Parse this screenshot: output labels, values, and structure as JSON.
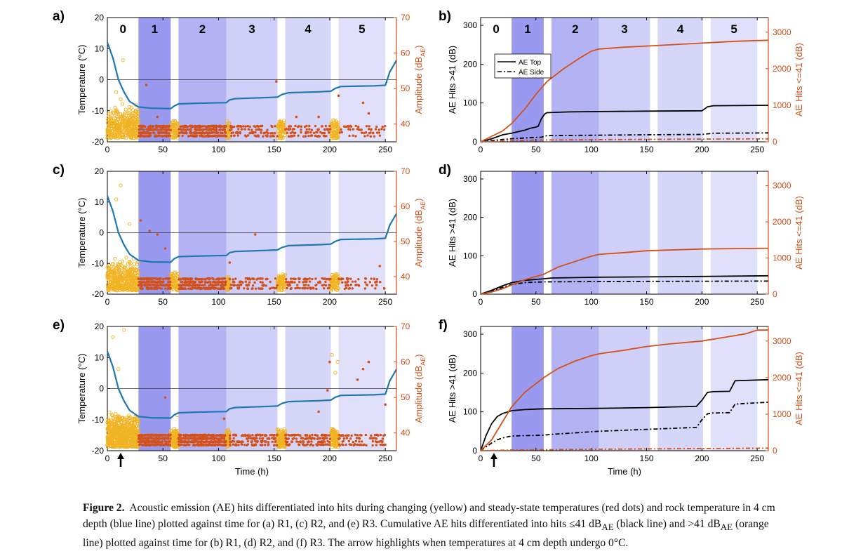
{
  "figure": {
    "caption_label": "Figure 2.",
    "caption_lines": [
      "Acoustic emission (AE) hits differentiated into hits during changing (yellow) and steady-state temperatures (red dots) and rock temperature in 4 cm depth",
      "(blue line) plotted against time for (a) R1, (c) R2, and (e) R3. Cumulative AE hits differentiated into hits ≤41 dB",
      "AE",
      " (black line) and >41 dB",
      "AE",
      " (orange line) plotted",
      "against time for (b) R1, (d) R2, and (f) R3. The arrow highlights when temperatures at 4 cm depth undergo 0°C."
    ]
  },
  "chart_data": [
    {
      "panel": "a)",
      "type": "scatter",
      "xlabel": "",
      "ylabel": "Temperature (°C)",
      "y2label": "Amplitude (dB_AE)",
      "xlim": [
        0,
        260
      ],
      "ylim": [
        -20,
        20
      ],
      "y2lim": [
        35,
        70
      ],
      "x_ticks": [
        0,
        50,
        100,
        150,
        200,
        250
      ],
      "y_ticks": [
        -20,
        -10,
        0,
        10,
        20
      ],
      "y2_ticks": [
        40,
        50,
        60,
        70
      ],
      "phases": [
        {
          "label": "0",
          "x0": 0,
          "x1": 28,
          "shade": "none"
        },
        {
          "label": "1",
          "x0": 28,
          "x1": 57,
          "shade": "#9999f0"
        },
        {
          "label": "2",
          "x0": 64,
          "x1": 107,
          "shade": "#b3b3f3"
        },
        {
          "label": "3",
          "x0": 107,
          "x1": 153,
          "shade": "#cfcff7"
        },
        {
          "label": "4",
          "x0": 160,
          "x1": 201,
          "shade": "#d6d6f8"
        },
        {
          "label": "5",
          "x0": 208,
          "x1": 250,
          "shade": "#e0e0fa"
        }
      ],
      "temperature": {
        "x": [
          0,
          5,
          10,
          15,
          20,
          28,
          40,
          57,
          60,
          64,
          80,
          107,
          110,
          115,
          140,
          153,
          157,
          163,
          190,
          201,
          205,
          210,
          240,
          250,
          254,
          260
        ],
        "y": [
          12,
          7,
          0,
          -4,
          -7,
          -8.8,
          -9.2,
          -9.3,
          -8.5,
          -7.8,
          -7.6,
          -7.4,
          -6.5,
          -6.1,
          -5.8,
          -5.6,
          -4.8,
          -4.2,
          -3.9,
          -3.7,
          -2.8,
          -2.2,
          -2.0,
          -1.8,
          2.5,
          6.2
        ]
      },
      "temperature_color": "#1f77b4",
      "changing_color": "#f0b323",
      "steady_color": "#d4501a",
      "outliers": [
        [
          8,
          49
        ],
        [
          14,
          58
        ],
        [
          35,
          51
        ],
        [
          45,
          42
        ],
        [
          12,
          47
        ],
        [
          152,
          52
        ],
        [
          208,
          48
        ],
        [
          170,
          42
        ],
        [
          190,
          42
        ],
        [
          230,
          46
        ],
        [
          235,
          43
        ]
      ]
    },
    {
      "panel": "b)",
      "type": "line",
      "ylabel": "AE Hits >41 (dB)",
      "y2label": "AE Hits <=41 (dB)",
      "xlim": [
        0,
        260
      ],
      "ylim": [
        0,
        320
      ],
      "y2lim": [
        0,
        3400
      ],
      "x_ticks": [
        0,
        50,
        100,
        150,
        200,
        250
      ],
      "y_ticks": [
        0,
        100,
        200,
        300
      ],
      "y2_ticks": [
        0,
        1000,
        2000,
        3000
      ],
      "legend": [
        {
          "name": "AE Top",
          "dash": "solid"
        },
        {
          "name": "AE Side",
          "dash": "dashdot"
        }
      ],
      "series": [
        {
          "role": "top_gt41",
          "axis": "left",
          "color": "#000000",
          "dash": "solid",
          "x": [
            0,
            10,
            20,
            28,
            35,
            40,
            45,
            50,
            52,
            55,
            58,
            60,
            80,
            107,
            150,
            200,
            205,
            210,
            260
          ],
          "y": [
            0,
            8,
            18,
            22,
            27,
            30,
            35,
            38,
            40,
            60,
            72,
            75,
            77,
            78,
            79,
            80,
            90,
            93,
            94
          ]
        },
        {
          "role": "side_gt41",
          "axis": "left",
          "color": "#000000",
          "dash": "dashdot",
          "x": [
            0,
            10,
            20,
            28,
            40,
            55,
            60,
            107,
            150,
            200,
            210,
            260
          ],
          "y": [
            0,
            3,
            6,
            8,
            10,
            12,
            16,
            17,
            18,
            19,
            22,
            23
          ]
        },
        {
          "role": "top_le41",
          "axis": "right",
          "color": "#d4501a",
          "dash": "solid",
          "x": [
            0,
            10,
            20,
            28,
            40,
            50,
            60,
            75,
            90,
            100,
            107,
            130,
            150,
            200,
            230,
            260
          ],
          "y": [
            0,
            150,
            300,
            500,
            900,
            1300,
            1650,
            2000,
            2300,
            2480,
            2540,
            2590,
            2620,
            2700,
            2750,
            2780
          ]
        },
        {
          "role": "side_le41",
          "axis": "right",
          "color": "#d4501a",
          "dash": "dashdot",
          "x": [
            0,
            28,
            60,
            107,
            200,
            260
          ],
          "y": [
            0,
            30,
            50,
            60,
            75,
            80
          ]
        }
      ]
    },
    {
      "panel": "c)",
      "type": "scatter",
      "ylabel": "Temperature (°C)",
      "y2label": "Amplitude (dB_AE)",
      "xlim": [
        0,
        260
      ],
      "ylim": [
        -20,
        20
      ],
      "y2lim": [
        35,
        70
      ],
      "x_ticks": [
        0,
        50,
        100,
        150,
        200,
        250
      ],
      "y_ticks": [
        -20,
        -10,
        0,
        10,
        20
      ],
      "y2_ticks": [
        40,
        50,
        60,
        70
      ],
      "temperature": {
        "x": [
          0,
          5,
          10,
          15,
          20,
          28,
          40,
          57,
          60,
          64,
          80,
          107,
          110,
          115,
          140,
          153,
          157,
          163,
          190,
          201,
          205,
          210,
          240,
          250,
          254,
          260
        ],
        "y": [
          12,
          7,
          0,
          -4,
          -7,
          -9.0,
          -9.5,
          -9.6,
          -8.5,
          -7.8,
          -7.6,
          -7.4,
          -6.5,
          -6.1,
          -5.8,
          -5.6,
          -4.8,
          -4.2,
          -3.9,
          -3.7,
          -2.8,
          -2.2,
          -2.0,
          -1.8,
          2.5,
          6.2
        ]
      },
      "outliers": [
        [
          8,
          62
        ],
        [
          12,
          66
        ],
        [
          20,
          55
        ],
        [
          30,
          56
        ],
        [
          38,
          53
        ],
        [
          45,
          52
        ],
        [
          52,
          48
        ],
        [
          133,
          52
        ],
        [
          110,
          44
        ],
        [
          245,
          43
        ]
      ]
    },
    {
      "panel": "d)",
      "type": "line",
      "ylabel": "AE Hits >41 (dB)",
      "y2label": "AE Hits <=41 (dB)",
      "xlim": [
        0,
        260
      ],
      "ylim": [
        0,
        320
      ],
      "y2lim": [
        0,
        3400
      ],
      "x_ticks": [
        0,
        50,
        100,
        150,
        200,
        250
      ],
      "y_ticks": [
        0,
        100,
        200,
        300
      ],
      "y2_ticks": [
        0,
        1000,
        2000,
        3000
      ],
      "series": [
        {
          "role": "top_gt41",
          "axis": "left",
          "color": "#000000",
          "dash": "solid",
          "x": [
            0,
            10,
            20,
            28,
            40,
            57,
            64,
            107,
            150,
            200,
            260
          ],
          "y": [
            0,
            10,
            22,
            30,
            36,
            40,
            42,
            44,
            45,
            46,
            48
          ]
        },
        {
          "role": "side_gt41",
          "axis": "left",
          "color": "#000000",
          "dash": "dashdot",
          "x": [
            0,
            10,
            20,
            28,
            40,
            57,
            107,
            260
          ],
          "y": [
            0,
            8,
            18,
            25,
            30,
            32,
            33,
            34
          ]
        },
        {
          "role": "top_le41",
          "axis": "right",
          "color": "#d4501a",
          "dash": "solid",
          "x": [
            0,
            10,
            20,
            28,
            40,
            57,
            70,
            85,
            100,
            107,
            130,
            150,
            200,
            260
          ],
          "y": [
            0,
            60,
            150,
            250,
            400,
            550,
            750,
            900,
            1050,
            1100,
            1150,
            1200,
            1250,
            1270
          ]
        }
      ]
    },
    {
      "panel": "e)",
      "type": "scatter",
      "xlabel": "Time (h)",
      "ylabel": "Temperature (°C)",
      "y2label": "Amplitude (dB_AE)",
      "xlim": [
        0,
        260
      ],
      "ylim": [
        -20,
        20
      ],
      "y2lim": [
        35,
        70
      ],
      "x_ticks": [
        0,
        50,
        100,
        150,
        200,
        250
      ],
      "y_ticks": [
        -20,
        -10,
        0,
        10,
        20
      ],
      "y2_ticks": [
        40,
        50,
        60,
        70
      ],
      "arrow_at": 12,
      "temperature": {
        "x": [
          0,
          5,
          10,
          15,
          20,
          28,
          40,
          57,
          60,
          64,
          80,
          107,
          110,
          115,
          140,
          153,
          157,
          163,
          190,
          201,
          205,
          210,
          240,
          250,
          254,
          260
        ],
        "y": [
          12,
          7,
          0,
          -4,
          -7,
          -9.0,
          -9.4,
          -9.5,
          -8.5,
          -7.8,
          -7.6,
          -7.4,
          -6.5,
          -6.1,
          -5.8,
          -5.6,
          -4.8,
          -4.2,
          -3.9,
          -3.7,
          -2.8,
          -2.2,
          -2.0,
          -1.8,
          2.5,
          6.2
        ]
      },
      "outliers": [
        [
          5,
          67
        ],
        [
          15,
          69
        ],
        [
          10,
          58
        ],
        [
          52,
          50
        ],
        [
          63,
          45
        ],
        [
          105,
          44
        ],
        [
          190,
          46
        ],
        [
          198,
          52
        ],
        [
          200,
          60
        ],
        [
          202,
          62
        ],
        [
          205,
          57
        ],
        [
          207,
          60
        ],
        [
          225,
          55
        ],
        [
          230,
          58
        ],
        [
          235,
          60
        ],
        [
          250,
          48
        ]
      ]
    },
    {
      "panel": "f)",
      "type": "line",
      "xlabel": "Time (h)",
      "ylabel": "AE Hits >41 (dB)",
      "y2label": "AE Hits <=41 (dB)",
      "xlim": [
        0,
        260
      ],
      "ylim": [
        0,
        320
      ],
      "y2lim": [
        0,
        3400
      ],
      "x_ticks": [
        0,
        50,
        100,
        150,
        200,
        250
      ],
      "y_ticks": [
        0,
        100,
        200,
        300
      ],
      "y2_ticks": [
        0,
        1000,
        2000,
        3000
      ],
      "arrow_at": 12,
      "series": [
        {
          "role": "top_gt41",
          "axis": "left",
          "color": "#000000",
          "dash": "solid",
          "x": [
            0,
            5,
            10,
            15,
            20,
            28,
            40,
            57,
            107,
            150,
            195,
            200,
            205,
            210,
            225,
            230,
            260
          ],
          "y": [
            0,
            40,
            70,
            88,
            96,
            103,
            106,
            108,
            109,
            111,
            114,
            130,
            150,
            152,
            153,
            180,
            183
          ]
        },
        {
          "role": "side_gt41",
          "axis": "left",
          "color": "#000000",
          "dash": "dashdot",
          "x": [
            0,
            5,
            10,
            15,
            20,
            28,
            57,
            64,
            107,
            150,
            195,
            200,
            205,
            210,
            225,
            230,
            260
          ],
          "y": [
            0,
            10,
            20,
            28,
            33,
            38,
            40,
            42,
            50,
            55,
            60,
            80,
            95,
            97,
            98,
            120,
            125
          ]
        },
        {
          "role": "top_le41",
          "axis": "right",
          "color": "#d4501a",
          "dash": "solid",
          "x": [
            0,
            10,
            20,
            28,
            40,
            57,
            70,
            85,
            100,
            107,
            130,
            150,
            170,
            200,
            220,
            240,
            250,
            260
          ],
          "y": [
            0,
            300,
            800,
            1200,
            1600,
            2000,
            2250,
            2450,
            2600,
            2650,
            2750,
            2850,
            2920,
            3000,
            3100,
            3200,
            3300,
            3300
          ]
        },
        {
          "role": "side_le41",
          "axis": "right",
          "color": "#d4501a",
          "dash": "dashdot",
          "x": [
            0,
            28,
            107,
            200,
            260
          ],
          "y": [
            0,
            20,
            40,
            60,
            70
          ]
        }
      ]
    }
  ]
}
